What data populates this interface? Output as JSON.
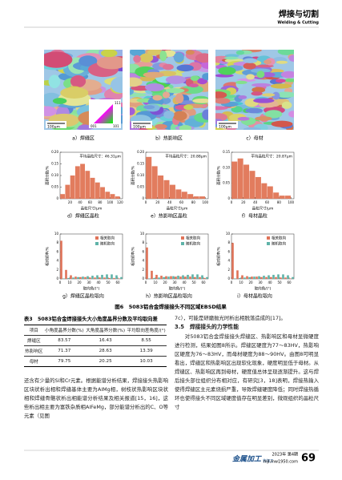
{
  "header": {
    "title": "焊接与切割",
    "subtitle": "Welding & Cutting"
  },
  "figure": {
    "maps": [
      {
        "caption": "a）焊缝区",
        "scale": "100μm"
      },
      {
        "caption": "b）热影响区",
        "scale": "100μm"
      },
      {
        "caption": "c）母材",
        "scale": "100μm"
      }
    ],
    "ipf_labels": [
      "111",
      "001",
      "101"
    ],
    "caption": "图6　5083铝合金焊接接头不同区域EBSD结果"
  },
  "chart_data": [
    {
      "type": "histogram",
      "caption": "d）焊缝区晶粒",
      "annotation": "平均晶粒尺寸：46.31μm",
      "xlabel": "晶粒尺寸/μm",
      "ylabel": "面积分数/%",
      "color": "#e27c5e",
      "bins": [
        0,
        10,
        20,
        30,
        40,
        50,
        60,
        70,
        80,
        90,
        100,
        110,
        120
      ],
      "values": [
        0.02,
        0.06,
        0.1,
        0.14,
        0.15,
        0.12,
        0.09,
        0.07,
        0.05,
        0.03,
        0.02,
        0.01
      ],
      "xlim": [
        0,
        125
      ],
      "xticks": [
        20,
        40,
        60,
        80,
        100,
        120
      ],
      "ylim": [
        0,
        0.2
      ],
      "yticks": [
        0,
        0.05,
        {
          "value": 0.1,
          "label": "0.10"
        },
        0.15,
        {
          "value": 0.2,
          "label": "0.20"
        }
      ]
    },
    {
      "type": "histogram",
      "caption": "e）热影响区晶粒",
      "annotation": "平均晶粒尺寸：20.88μm",
      "xlabel": "晶粒尺寸/μm",
      "ylabel": "面积分数/%",
      "color": "#e27c5e",
      "bins": [
        0,
        10,
        20,
        30,
        40,
        50,
        60,
        70,
        80,
        90,
        100
      ],
      "values": [
        0.18,
        0.14,
        0.1,
        0.08,
        0.06,
        0.04,
        0.03,
        0.02,
        0.01,
        0.01
      ],
      "xlim": [
        0,
        105
      ],
      "xticks": [
        0,
        20,
        40,
        60,
        80,
        100
      ],
      "ylim": [
        0,
        0.2
      ],
      "yticks": [
        0,
        0.05,
        {
          "value": 0.1,
          "label": "0.10"
        },
        0.15,
        {
          "value": 0.2,
          "label": "0.20"
        }
      ]
    },
    {
      "type": "histogram",
      "caption": "f）母材晶粒",
      "annotation": "平均晶粒尺寸：20.87μm",
      "xlabel": "晶粒尺寸/μm",
      "ylabel": "面积分数/%",
      "color": "#e27c5e",
      "bins": [
        0,
        10,
        20,
        30,
        40,
        50,
        60,
        70,
        80,
        90,
        100
      ],
      "values": [
        0.12,
        0.13,
        0.11,
        0.09,
        0.07,
        0.05,
        0.04,
        0.02,
        0.01,
        0.01
      ],
      "xlim": [
        0,
        105
      ],
      "xticks": [
        0,
        20,
        40,
        60,
        80,
        100
      ],
      "ylim": [
        0,
        0.15
      ],
      "yticks": [
        0,
        0.05,
        {
          "value": 0.1,
          "label": "0.10"
        },
        0.15
      ]
    },
    {
      "type": "histogram",
      "caption": "g）焊缝区晶粒取向",
      "xlabel": "取向角/(°)",
      "ylabel": "相对频率/%",
      "bins": [
        0,
        5,
        10,
        15,
        20,
        25,
        30,
        35,
        40,
        45,
        50,
        55,
        60,
        65
      ],
      "series": [
        {
          "name": "相关取向",
          "color": "#e07358",
          "values": [
            8.5,
            2,
            0.8,
            0.5,
            0.4,
            0.4,
            0.3,
            0.3,
            0.3,
            0.3,
            0.2,
            0.2,
            0.1
          ]
        },
        {
          "name": "随机取向",
          "color": "#5fb3a8",
          "values": [
            0.1,
            0.2,
            0.3,
            0.4,
            0.5,
            0.6,
            0.7,
            0.8,
            0.9,
            1,
            1,
            0.8,
            0.4
          ]
        }
      ],
      "xlim": [
        0,
        65
      ],
      "xticks": [
        0,
        10,
        20,
        30,
        40,
        50,
        60
      ],
      "ylim": [
        0,
        10
      ],
      "yticks": [
        0,
        2,
        4,
        6,
        8,
        10
      ]
    },
    {
      "type": "histogram",
      "caption": "h）热影响区晶粒取向",
      "xlabel": "取向角/(°)",
      "ylabel": "相对频率/%",
      "bins": [
        0,
        5,
        10,
        15,
        20,
        25,
        30,
        35,
        40,
        45,
        50,
        55,
        60,
        65
      ],
      "series": [
        {
          "name": "相关取向",
          "color": "#e07358",
          "values": [
            7,
            1.8,
            0.9,
            0.7,
            0.6,
            0.6,
            0.5,
            0.5,
            0.5,
            0.5,
            0.4,
            0.4,
            0.2
          ]
        },
        {
          "name": "随机取向",
          "color": "#5fb3a8",
          "values": [
            0.1,
            0.2,
            0.3,
            0.4,
            0.5,
            0.6,
            0.7,
            0.8,
            0.9,
            1,
            1,
            0.8,
            0.4
          ]
        }
      ],
      "xlim": [
        0,
        65
      ],
      "xticks": [
        0,
        10,
        20,
        30,
        40,
        50,
        60
      ],
      "ylim": [
        0,
        10
      ],
      "yticks": [
        0,
        2,
        4,
        6,
        8,
        10
      ]
    },
    {
      "type": "histogram",
      "caption": "i）母材晶粒取向",
      "xlabel": "取向角/(°)",
      "ylabel": "相对频率/%",
      "bins": [
        0,
        5,
        10,
        15,
        20,
        25,
        30,
        35,
        40,
        45,
        50,
        55,
        60,
        65
      ],
      "series": [
        {
          "name": "相关取向",
          "color": "#e07358",
          "values": [
            8,
            1.9,
            0.8,
            0.6,
            0.5,
            0.5,
            0.4,
            0.4,
            0.4,
            0.4,
            0.3,
            0.3,
            0.1
          ]
        },
        {
          "name": "随机取向",
          "color": "#5fb3a8",
          "values": [
            0.1,
            0.2,
            0.3,
            0.4,
            0.5,
            0.6,
            0.7,
            0.8,
            0.9,
            1,
            1,
            0.8,
            0.4
          ]
        }
      ],
      "xlim": [
        0,
        65
      ],
      "xticks": [
        0,
        10,
        20,
        30,
        40,
        50,
        60
      ],
      "ylim": [
        0,
        10
      ],
      "yticks": [
        0,
        2,
        4,
        6,
        8,
        10
      ]
    }
  ],
  "table": {
    "caption": "表3　5083铝合金焊接接头大小角度晶界分数及平均取向差",
    "columns": [
      "项目",
      "小角度晶界分数(%)",
      "大角度晶界分数(%)",
      "平均取向差角度/(°)"
    ],
    "rows": [
      [
        "焊缝区",
        83.57,
        16.43,
        8.55
      ],
      [
        "热影响区",
        71.37,
        28.63,
        13.39
      ],
      [
        "母材",
        79.75,
        20.25,
        10.03
      ]
    ]
  },
  "text": {
    "left": "还含有少量的Si和Cr元素。根据能谱分析结果，焊接接头热影响区块状析出相和焊缝基体主要为AlMg相，树枝状热影响区块状相和焊缝骨骼状析出相能谱分析结果及相关报道[15，16]，这些析出相主要为富铁杂质相AlFeMg，部分能谱分析出的C、O等元素（见图",
    "right_top": "7c），可能是研磨抛光时析出相脱落造成的[17]。",
    "section": "3.5　焊接接头的力学性能",
    "right_body": "对5083铝合金焊接接头焊缝区、热影响区和母材显微硬度进行检测，结果如图8所示。焊缝区硬度为77～83HV，热影响区硬度为76～83HV，而母材硬度为88～90HV。由图8可明显看出，焊缝区和热影响区出现软化现象，硬度明显低于母材。从焊缝区、热影响区再到母材，硬度值总体呈现逐渐提升。这与焊后接头部位组织分布相对应，有研究[3，18]表明，焊接热输入使得焊缝区主元素烧损严重，导致焊缝硬度降低；同时焊接热循环也使得接头不同区域硬度值存在明显差别，微观组织的晶粒尺寸"
  },
  "footer": {
    "issue": "2023年 第4期",
    "url": "mjl.mw1950.com",
    "logo": "金属加工",
    "logo_sub": "热加工",
    "page": 69
  }
}
